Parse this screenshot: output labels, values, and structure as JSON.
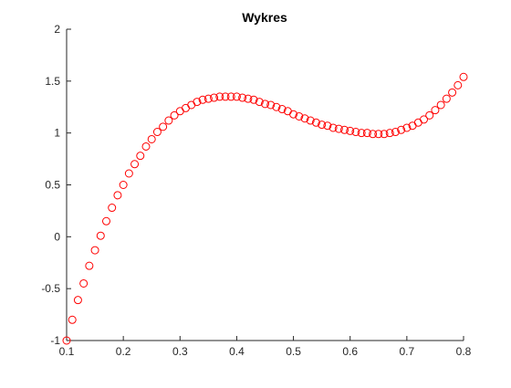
{
  "chart_data": {
    "type": "scatter",
    "title": "Wykres",
    "xlabel": "",
    "ylabel": "",
    "xlim": [
      0.1,
      0.8
    ],
    "ylim": [
      -1,
      2
    ],
    "xticks": [
      "0.1",
      "0.2",
      "0.3",
      "0.4",
      "0.5",
      "0.6",
      "0.7",
      "0.8"
    ],
    "yticks": [
      "-1",
      "-0.5",
      "0",
      "0.5",
      "1",
      "1.5",
      "2"
    ],
    "grid": false,
    "legend": null,
    "marker": "circle",
    "marker_color": "#ff0000",
    "x": [
      0.1,
      0.11,
      0.12,
      0.13,
      0.14,
      0.15,
      0.16,
      0.17,
      0.18,
      0.19,
      0.2,
      0.21,
      0.22,
      0.23,
      0.24,
      0.25,
      0.26,
      0.27,
      0.28,
      0.29,
      0.3,
      0.31,
      0.32,
      0.33,
      0.34,
      0.35,
      0.36,
      0.37,
      0.38,
      0.39,
      0.4,
      0.41,
      0.42,
      0.43,
      0.44,
      0.45,
      0.46,
      0.47,
      0.48,
      0.49,
      0.5,
      0.51,
      0.52,
      0.53,
      0.54,
      0.55,
      0.56,
      0.57,
      0.58,
      0.59,
      0.6,
      0.61,
      0.62,
      0.63,
      0.64,
      0.65,
      0.66,
      0.67,
      0.68,
      0.69,
      0.7,
      0.71,
      0.72,
      0.73,
      0.74,
      0.75,
      0.76,
      0.77,
      0.78,
      0.79,
      0.8
    ],
    "y": [
      -1.0,
      -0.8,
      -0.61,
      -0.45,
      -0.28,
      -0.13,
      0.01,
      0.15,
      0.28,
      0.4,
      0.5,
      0.61,
      0.7,
      0.78,
      0.87,
      0.94,
      1.01,
      1.06,
      1.12,
      1.17,
      1.21,
      1.24,
      1.27,
      1.3,
      1.32,
      1.33,
      1.34,
      1.35,
      1.35,
      1.35,
      1.35,
      1.34,
      1.33,
      1.32,
      1.3,
      1.28,
      1.27,
      1.25,
      1.23,
      1.21,
      1.18,
      1.16,
      1.14,
      1.12,
      1.1,
      1.08,
      1.07,
      1.05,
      1.04,
      1.03,
      1.02,
      1.01,
      1.0,
      1.0,
      0.99,
      0.99,
      0.99,
      1.0,
      1.01,
      1.03,
      1.05,
      1.07,
      1.1,
      1.13,
      1.17,
      1.22,
      1.27,
      1.33,
      1.39,
      1.46,
      1.54
    ]
  }
}
